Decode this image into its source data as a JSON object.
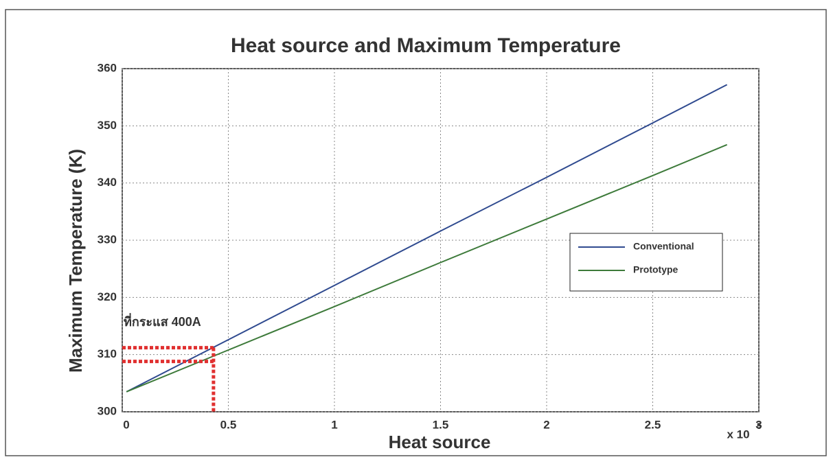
{
  "chart_data": {
    "type": "line",
    "title": "Heat source and Maximum Temperature",
    "x_label": "Heat source",
    "y_label": "Maximum Temperature (K)",
    "x_multiplier": "x 10",
    "x_multiplier_exponent": "5",
    "x": [
      0.02,
      0.5,
      1,
      1.5,
      2,
      2.5,
      2.85
    ],
    "series": [
      {
        "name": "Conventional",
        "color": "#2f4a8f",
        "values": [
          303.5,
          312.6,
          322.1,
          331.6,
          341.0,
          350.5,
          357.2
        ]
      },
      {
        "name": "Prototype",
        "color": "#3d7a3a",
        "values": [
          303.5,
          310.8,
          318.4,
          326.1,
          333.7,
          341.3,
          346.7
        ]
      }
    ],
    "xlim": [
      0,
      3
    ],
    "xticks": [
      0,
      0.5,
      1,
      1.5,
      2,
      2.5,
      3
    ],
    "ylim": [
      300,
      360
    ],
    "yticks": [
      300,
      310,
      320,
      330,
      340,
      350,
      360
    ],
    "grid": true,
    "legend": "right",
    "annotation": {
      "text": "ที่กระแส 400A",
      "color": "#e03030",
      "points": [
        {
          "x": 0.43,
          "y": 311.2
        },
        {
          "x": 0.43,
          "y": 308.8
        }
      ]
    }
  }
}
